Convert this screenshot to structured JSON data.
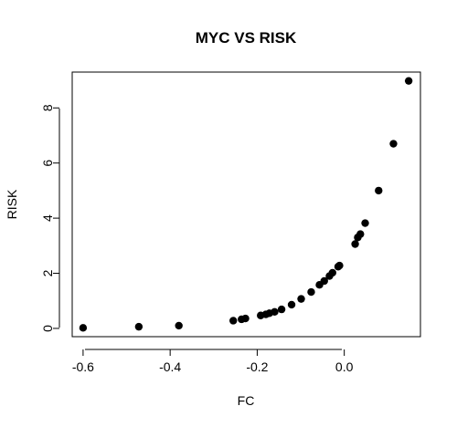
{
  "chart_data": {
    "type": "scatter",
    "title": "MYC VS RISK",
    "xlabel": "FC",
    "ylabel": "RISK",
    "xlim": [
      -0.625,
      0.175
    ],
    "ylim": [
      -0.3,
      9.3
    ],
    "xticks": [
      -0.6,
      -0.4,
      -0.2,
      0.0
    ],
    "xtick_labels": [
      "-0.6",
      "-0.4",
      "-0.2",
      "0.0"
    ],
    "yticks": [
      0,
      2,
      4,
      6,
      8
    ],
    "ytick_labels": [
      "0",
      "2",
      "4",
      "6",
      "8"
    ],
    "grid": false,
    "legend": null,
    "marker_color": "#000000",
    "points": [
      {
        "x": -0.6,
        "y": 0.02
      },
      {
        "x": -0.472,
        "y": 0.06
      },
      {
        "x": -0.38,
        "y": 0.1
      },
      {
        "x": -0.255,
        "y": 0.28
      },
      {
        "x": -0.236,
        "y": 0.33
      },
      {
        "x": -0.227,
        "y": 0.36
      },
      {
        "x": -0.192,
        "y": 0.47
      },
      {
        "x": -0.18,
        "y": 0.51
      },
      {
        "x": -0.172,
        "y": 0.55
      },
      {
        "x": -0.16,
        "y": 0.6
      },
      {
        "x": -0.144,
        "y": 0.69
      },
      {
        "x": -0.121,
        "y": 0.86
      },
      {
        "x": -0.099,
        "y": 1.07
      },
      {
        "x": -0.076,
        "y": 1.32
      },
      {
        "x": -0.057,
        "y": 1.58
      },
      {
        "x": -0.046,
        "y": 1.72
      },
      {
        "x": -0.034,
        "y": 1.9
      },
      {
        "x": -0.027,
        "y": 2.02
      },
      {
        "x": -0.014,
        "y": 2.24
      },
      {
        "x": -0.011,
        "y": 2.28
      },
      {
        "x": 0.025,
        "y": 3.06
      },
      {
        "x": 0.031,
        "y": 3.3
      },
      {
        "x": 0.037,
        "y": 3.42
      },
      {
        "x": 0.048,
        "y": 3.82
      },
      {
        "x": 0.079,
        "y": 5.0
      },
      {
        "x": 0.113,
        "y": 6.7
      },
      {
        "x": 0.148,
        "y": 8.98
      }
    ]
  }
}
